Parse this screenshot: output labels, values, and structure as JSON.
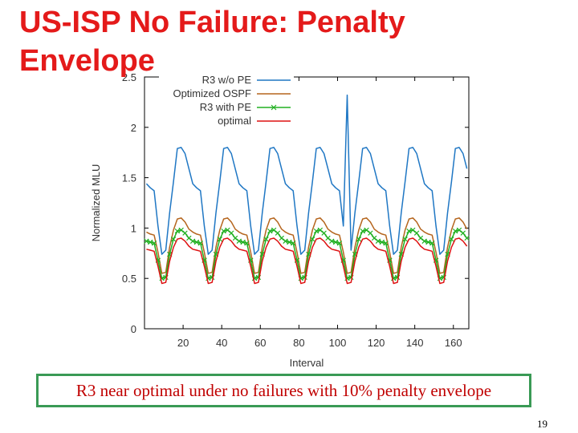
{
  "slide": {
    "title": "US-ISP No Failure: Penalty\nEnvelope",
    "caption": "R3 near optimal under no failures with 10% penalty envelope",
    "page_number": "19"
  },
  "chart_data": {
    "type": "line",
    "title": "",
    "xlabel": "Interval",
    "ylabel": "Normalized MLU",
    "xlim": [
      0,
      168
    ],
    "ylim": [
      0,
      2.5
    ],
    "x_ticks": [
      20,
      40,
      60,
      80,
      100,
      120,
      140,
      160
    ],
    "y_ticks": [
      0,
      0.5,
      1,
      1.5,
      2,
      2.5
    ],
    "y_tick_labels": [
      "0",
      "0.5",
      "1",
      "1.5",
      "2",
      "2.5"
    ],
    "grid": false,
    "legend": "top-left",
    "period": 24.2,
    "x": [
      1,
      3,
      5,
      7,
      9,
      11,
      13,
      15,
      17,
      19,
      21,
      23,
      25,
      27,
      29,
      31,
      33,
      35,
      37,
      39,
      41,
      43,
      45,
      47,
      49,
      51,
      53,
      55,
      57,
      59,
      61,
      63,
      65,
      67,
      69,
      71,
      73,
      75,
      77,
      79,
      81,
      83,
      85,
      87,
      89,
      91,
      93,
      95,
      97,
      99,
      101,
      103,
      105,
      107,
      109,
      111,
      113,
      115,
      117,
      119,
      121,
      123,
      125,
      127,
      129,
      131,
      133,
      135,
      137,
      139,
      141,
      143,
      145,
      147,
      149,
      151,
      153,
      155,
      157,
      159,
      161,
      163,
      165,
      167
    ],
    "series": [
      {
        "name": "R3 w/o PE",
        "color": "#1f77c4",
        "marker": "none",
        "values": [
          1.44,
          1.4,
          1.37,
          1.02,
          0.74,
          0.78,
          1.15,
          1.46,
          1.79,
          1.8,
          1.74,
          1.59,
          1.44,
          1.4,
          1.37,
          1.02,
          0.74,
          0.78,
          1.15,
          1.46,
          1.79,
          1.8,
          1.74,
          1.59,
          1.44,
          1.4,
          1.37,
          1.02,
          0.74,
          0.78,
          1.15,
          1.46,
          1.79,
          1.8,
          1.74,
          1.59,
          1.44,
          1.4,
          1.37,
          1.02,
          0.74,
          0.78,
          1.15,
          1.46,
          1.79,
          1.8,
          1.74,
          1.59,
          1.44,
          1.4,
          1.37,
          1.02,
          2.32,
          0.78,
          1.15,
          1.46,
          1.79,
          1.8,
          1.74,
          1.59,
          1.44,
          1.4,
          1.37,
          1.02,
          0.74,
          0.78,
          1.15,
          1.46,
          1.79,
          1.8,
          1.74,
          1.59,
          1.44,
          1.4,
          1.37,
          1.02,
          0.74,
          0.78,
          1.15,
          1.46,
          1.79,
          1.8,
          1.74,
          1.59
        ]
      },
      {
        "name": "Optimized OSPF",
        "color": "#b5651d",
        "marker": "none",
        "values": [
          0.96,
          0.94,
          0.93,
          0.76,
          0.55,
          0.56,
          0.81,
          0.98,
          1.09,
          1.1,
          1.06,
          0.99,
          0.96,
          0.94,
          0.93,
          0.76,
          0.55,
          0.56,
          0.81,
          0.98,
          1.09,
          1.1,
          1.06,
          0.99,
          0.96,
          0.94,
          0.93,
          0.76,
          0.55,
          0.56,
          0.81,
          0.98,
          1.09,
          1.1,
          1.06,
          0.99,
          0.96,
          0.94,
          0.93,
          0.76,
          0.55,
          0.56,
          0.81,
          0.98,
          1.09,
          1.1,
          1.06,
          0.99,
          0.96,
          0.94,
          0.93,
          0.76,
          0.55,
          0.56,
          0.81,
          0.98,
          1.09,
          1.1,
          1.06,
          0.99,
          0.96,
          0.94,
          0.93,
          0.76,
          0.55,
          0.56,
          0.81,
          0.98,
          1.09,
          1.1,
          1.06,
          0.99,
          0.96,
          0.94,
          0.93,
          0.76,
          0.55,
          0.56,
          0.81,
          0.98,
          1.09,
          1.1,
          1.06,
          0.99
        ]
      },
      {
        "name": "R3 with PE",
        "color": "#22b022",
        "marker": "x",
        "values": [
          0.87,
          0.86,
          0.85,
          0.68,
          0.5,
          0.51,
          0.74,
          0.89,
          0.97,
          0.98,
          0.95,
          0.9,
          0.87,
          0.86,
          0.85,
          0.68,
          0.5,
          0.51,
          0.74,
          0.89,
          0.97,
          0.98,
          0.95,
          0.9,
          0.87,
          0.86,
          0.85,
          0.68,
          0.5,
          0.51,
          0.74,
          0.89,
          0.97,
          0.98,
          0.95,
          0.9,
          0.87,
          0.86,
          0.85,
          0.68,
          0.5,
          0.51,
          0.74,
          0.89,
          0.97,
          0.98,
          0.95,
          0.9,
          0.87,
          0.86,
          0.85,
          0.68,
          0.5,
          0.51,
          0.74,
          0.89,
          0.97,
          0.98,
          0.95,
          0.9,
          0.87,
          0.86,
          0.85,
          0.68,
          0.5,
          0.51,
          0.74,
          0.89,
          0.97,
          0.98,
          0.95,
          0.9,
          0.87,
          0.86,
          0.85,
          0.68,
          0.5,
          0.51,
          0.74,
          0.89,
          0.97,
          0.98,
          0.95,
          0.9
        ]
      },
      {
        "name": "optimal",
        "color": "#dd1111",
        "marker": "none",
        "values": [
          0.79,
          0.78,
          0.77,
          0.62,
          0.45,
          0.46,
          0.67,
          0.81,
          0.89,
          0.9,
          0.87,
          0.82,
          0.79,
          0.78,
          0.77,
          0.62,
          0.45,
          0.46,
          0.67,
          0.81,
          0.89,
          0.9,
          0.87,
          0.82,
          0.79,
          0.78,
          0.77,
          0.62,
          0.45,
          0.46,
          0.67,
          0.81,
          0.89,
          0.9,
          0.87,
          0.82,
          0.79,
          0.78,
          0.77,
          0.62,
          0.45,
          0.46,
          0.67,
          0.81,
          0.89,
          0.9,
          0.87,
          0.82,
          0.79,
          0.78,
          0.77,
          0.62,
          0.45,
          0.46,
          0.67,
          0.81,
          0.89,
          0.9,
          0.87,
          0.82,
          0.79,
          0.78,
          0.77,
          0.62,
          0.45,
          0.46,
          0.67,
          0.81,
          0.89,
          0.9,
          0.87,
          0.82,
          0.79,
          0.78,
          0.77,
          0.62,
          0.45,
          0.46,
          0.67,
          0.81,
          0.89,
          0.9,
          0.87,
          0.82
        ]
      }
    ]
  }
}
